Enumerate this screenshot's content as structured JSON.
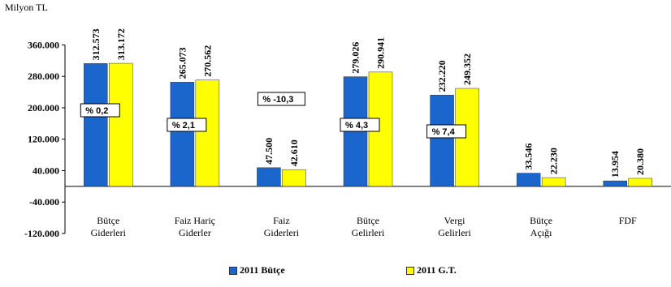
{
  "unit_label": "Milyon TL",
  "colors": {
    "series1": "#1a66cc",
    "series2": "#ffff00",
    "axis": "#000000"
  },
  "chart_data": {
    "type": "bar",
    "title": "",
    "xlabel": "",
    "ylabel": "Milyon TL",
    "ylim": [
      -120000,
      400000
    ],
    "yticks": [
      -120000,
      -40000,
      40000,
      120000,
      200000,
      280000,
      360000
    ],
    "ytick_labels": [
      "-120.000",
      "-40.000",
      "40.000",
      "120.000",
      "200.000",
      "280.000",
      "360.000"
    ],
    "categories": [
      [
        "Bütçe",
        "Giderleri"
      ],
      [
        "Faiz Hariç",
        "Giderler"
      ],
      [
        "Faiz",
        "Giderleri"
      ],
      [
        "Bütçe",
        "Gelirleri"
      ],
      [
        "Vergi",
        "Gelirleri"
      ],
      [
        "Bütçe",
        "Açığı"
      ],
      [
        "FDF"
      ]
    ],
    "series": [
      {
        "name": "2011 Bütçe",
        "values": [
          312573,
          265073,
          47500,
          279026,
          232220,
          33546,
          13954
        ],
        "labels": [
          "312.573",
          "265.073",
          "47.500",
          "279.026",
          "232.220",
          "33.546",
          "13.954"
        ]
      },
      {
        "name": "2011 G.T.",
        "values": [
          313172,
          270562,
          42610,
          290941,
          249352,
          22230,
          20380
        ],
        "labels": [
          "313.172",
          "270.562",
          "42.610",
          "290.941",
          "249.352",
          "22.230",
          "20.380"
        ]
      }
    ],
    "annotations": [
      {
        "category_index": 0,
        "text": "% 0,2"
      },
      {
        "category_index": 1,
        "text": "% 2,1"
      },
      {
        "category_index": 2,
        "text": "% -10,3"
      },
      {
        "category_index": 3,
        "text": "% 4,3"
      },
      {
        "category_index": 4,
        "text": "% 7,4"
      }
    ],
    "legend": "bottom"
  }
}
